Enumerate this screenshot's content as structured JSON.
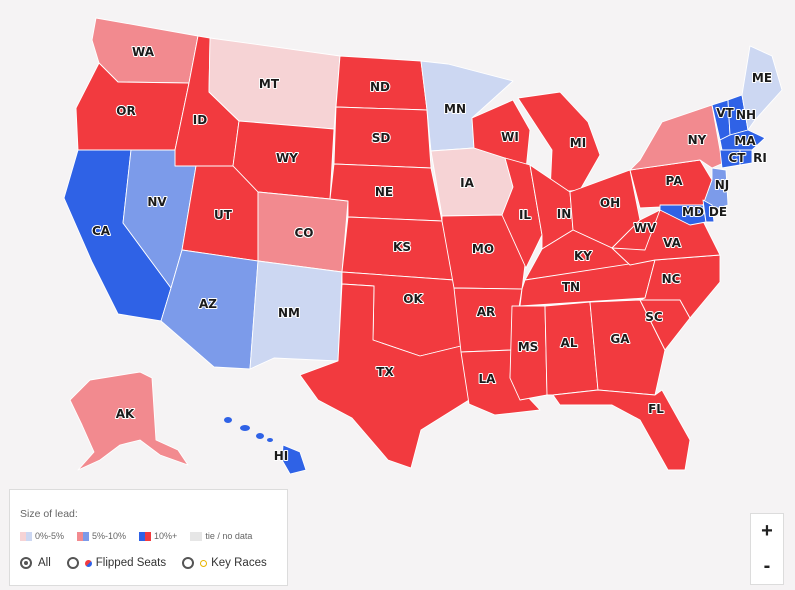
{
  "colors": {
    "rep_strong": "#f23a3f",
    "rep_mid": "#f28a8f",
    "rep_light": "#f6d3d5",
    "dem_strong": "#2f62e6",
    "dem_mid": "#7c9bea",
    "dem_light": "#ccd7f2",
    "tie": "#e6e6e6",
    "background": "#f5f3f4"
  },
  "states": [
    {
      "code": "WA",
      "label": "WA",
      "fill": "rep_mid"
    },
    {
      "code": "OR",
      "label": "OR",
      "fill": "rep_strong"
    },
    {
      "code": "CA",
      "label": "CA",
      "fill": "dem_strong"
    },
    {
      "code": "ID",
      "label": "ID",
      "fill": "rep_strong"
    },
    {
      "code": "NV",
      "label": "NV",
      "fill": "dem_mid"
    },
    {
      "code": "MT",
      "label": "MT",
      "fill": "rep_light"
    },
    {
      "code": "WY",
      "label": "WY",
      "fill": "rep_strong"
    },
    {
      "code": "UT",
      "label": "UT",
      "fill": "rep_strong"
    },
    {
      "code": "AZ",
      "label": "AZ",
      "fill": "dem_mid"
    },
    {
      "code": "CO",
      "label": "CO",
      "fill": "rep_mid"
    },
    {
      "code": "NM",
      "label": "NM",
      "fill": "dem_light"
    },
    {
      "code": "ND",
      "label": "ND",
      "fill": "rep_strong"
    },
    {
      "code": "SD",
      "label": "SD",
      "fill": "rep_strong"
    },
    {
      "code": "NE",
      "label": "NE",
      "fill": "rep_strong"
    },
    {
      "code": "KS",
      "label": "KS",
      "fill": "rep_strong"
    },
    {
      "code": "OK",
      "label": "OK",
      "fill": "rep_strong"
    },
    {
      "code": "TX",
      "label": "TX",
      "fill": "rep_strong"
    },
    {
      "code": "MN",
      "label": "MN",
      "fill": "dem_light"
    },
    {
      "code": "IA",
      "label": "IA",
      "fill": "rep_light"
    },
    {
      "code": "MO",
      "label": "MO",
      "fill": "rep_strong"
    },
    {
      "code": "AR",
      "label": "AR",
      "fill": "rep_strong"
    },
    {
      "code": "LA",
      "label": "LA",
      "fill": "rep_strong"
    },
    {
      "code": "WI",
      "label": "WI",
      "fill": "rep_strong"
    },
    {
      "code": "IL",
      "label": "IL",
      "fill": "rep_strong"
    },
    {
      "code": "MI",
      "label": "MI",
      "fill": "rep_strong"
    },
    {
      "code": "IN",
      "label": "IN",
      "fill": "rep_strong"
    },
    {
      "code": "OH",
      "label": "OH",
      "fill": "rep_strong"
    },
    {
      "code": "KY",
      "label": "KY",
      "fill": "rep_strong"
    },
    {
      "code": "TN",
      "label": "TN",
      "fill": "rep_strong"
    },
    {
      "code": "MS",
      "label": "MS",
      "fill": "rep_strong"
    },
    {
      "code": "AL",
      "label": "AL",
      "fill": "rep_strong"
    },
    {
      "code": "GA",
      "label": "GA",
      "fill": "rep_strong"
    },
    {
      "code": "FL",
      "label": "FL",
      "fill": "rep_strong"
    },
    {
      "code": "SC",
      "label": "SC",
      "fill": "rep_strong"
    },
    {
      "code": "NC",
      "label": "NC",
      "fill": "rep_strong"
    },
    {
      "code": "VA",
      "label": "VA",
      "fill": "rep_strong"
    },
    {
      "code": "WV",
      "label": "WV",
      "fill": "rep_strong"
    },
    {
      "code": "PA",
      "label": "PA",
      "fill": "rep_strong"
    },
    {
      "code": "NY",
      "label": "NY",
      "fill": "rep_mid"
    },
    {
      "code": "VT",
      "label": "VT",
      "fill": "dem_strong"
    },
    {
      "code": "NH",
      "label": "NH",
      "fill": "dem_strong"
    },
    {
      "code": "ME",
      "label": "ME",
      "fill": "dem_light"
    },
    {
      "code": "MA",
      "label": "MA",
      "fill": "dem_strong"
    },
    {
      "code": "CT",
      "label": "CT",
      "fill": "dem_strong"
    },
    {
      "code": "RI",
      "label": "RI",
      "fill": "dem_strong"
    },
    {
      "code": "NJ",
      "label": "NJ",
      "fill": "dem_mid"
    },
    {
      "code": "MD",
      "label": "MD",
      "fill": "dem_strong"
    },
    {
      "code": "DE",
      "label": "DE",
      "fill": "dem_strong"
    },
    {
      "code": "AK",
      "label": "AK",
      "fill": "rep_mid"
    },
    {
      "code": "HI",
      "label": "HI",
      "fill": "dem_strong"
    }
  ],
  "legend": {
    "title": "Size of lead:",
    "items": [
      {
        "label": "0%-5%",
        "rep": "rep_light",
        "dem": "dem_light"
      },
      {
        "label": "5%-10%",
        "rep": "rep_mid",
        "dem": "dem_mid"
      },
      {
        "label": "10%+",
        "rep": "rep_strong",
        "dem": "dem_strong"
      },
      {
        "label": "tie / no data",
        "rep": "tie",
        "dem": "tie"
      }
    ],
    "filters": [
      {
        "label": "All",
        "selected": true
      },
      {
        "label": "Flipped Seats",
        "selected": false
      },
      {
        "label": "Key Races",
        "selected": false
      }
    ]
  },
  "zoom": {
    "in_label": "+",
    "out_label": "-"
  }
}
